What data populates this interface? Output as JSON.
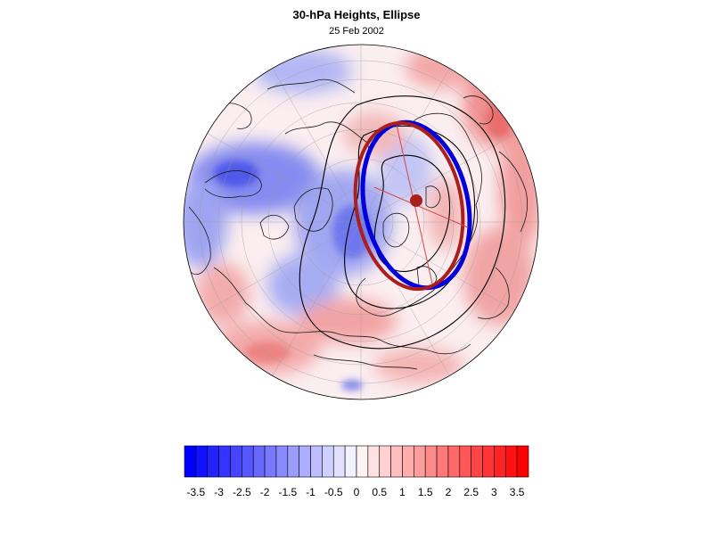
{
  "header": {
    "title": "30-hPa Heights, Ellipse",
    "date": "25 Feb 2002"
  },
  "map": {
    "projection": "orthographic-north-polar",
    "field_colors": {
      "negative": "#0000ff",
      "neutral": "#ffffff",
      "positive": "#ff0000"
    },
    "ellipse_colors": {
      "fit": "#0000dd",
      "reference": "#aa1e1e",
      "contour": "#000000"
    }
  },
  "colorbar": {
    "labels": [
      "-3.5",
      "-3",
      "-2.5",
      "-2",
      "-1.5",
      "-1",
      "-0.5",
      "0",
      "0.5",
      "1",
      "1.5",
      "2",
      "2.5",
      "3",
      "3.5"
    ],
    "min": -3.75,
    "max": 3.75,
    "step": 0.25
  }
}
